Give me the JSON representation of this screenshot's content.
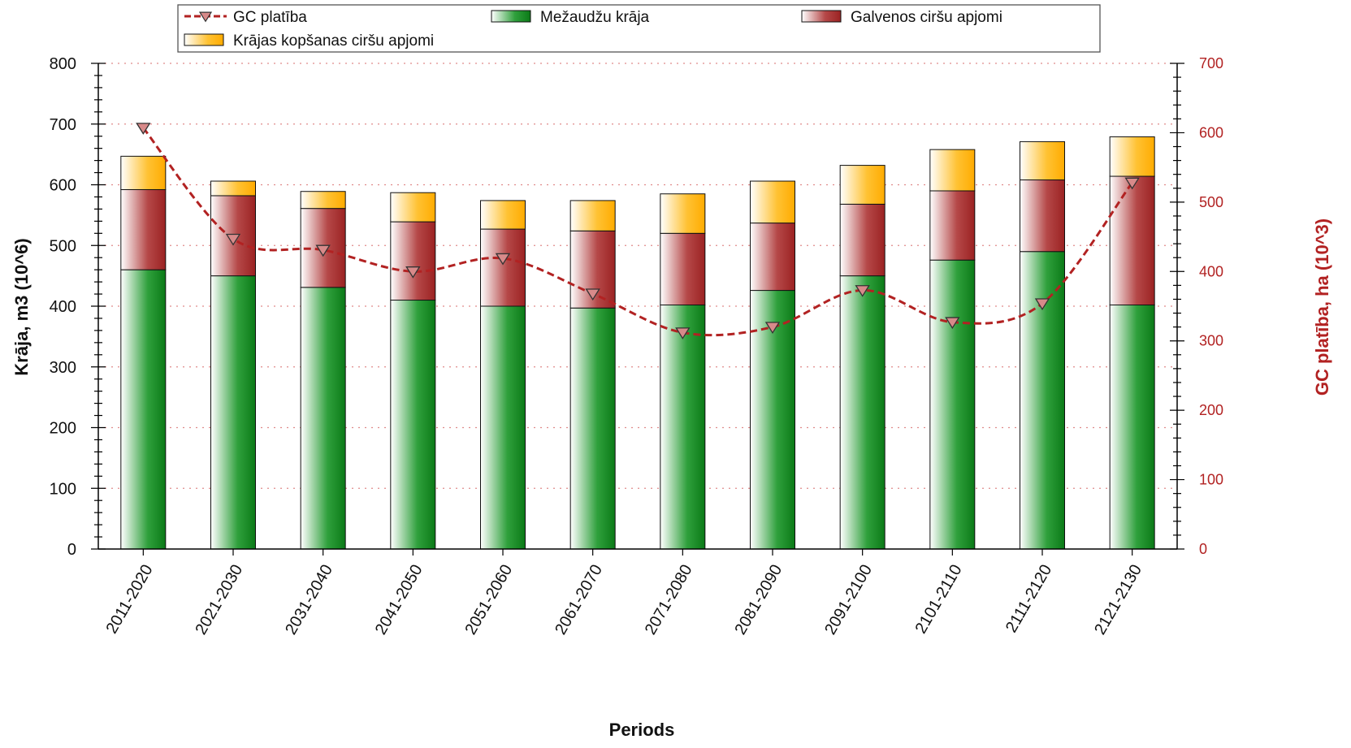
{
  "chart_data": {
    "type": "bar",
    "stacked": true,
    "categories": [
      "2011-2020",
      "2021-2030",
      "2031-2040",
      "2041-2050",
      "2051-2060",
      "2061-2070",
      "2071-2080",
      "2081-2090",
      "2091-2100",
      "2101-2110",
      "2111-2120",
      "2121-2130"
    ],
    "series": [
      {
        "name": "Mežaudžu krāja",
        "axis": "left",
        "color": "#0e8a1e",
        "values": [
          460,
          450,
          431,
          410,
          400,
          397,
          402,
          426,
          450,
          476,
          490,
          402
        ]
      },
      {
        "name": "Galvenos ciršu apjomi",
        "axis": "left",
        "color": "#a32a2a",
        "values": [
          132,
          132,
          130,
          129,
          127,
          127,
          118,
          111,
          118,
          114,
          118,
          212
        ]
      },
      {
        "name": "Krājas kopšanas ciršu apjomi",
        "axis": "left",
        "color": "#ffb300",
        "values": [
          55,
          24,
          28,
          48,
          47,
          50,
          65,
          69,
          64,
          68,
          63,
          65
        ]
      },
      {
        "name": "GC platība",
        "axis": "right",
        "type": "line",
        "color": "#b22222",
        "values": [
          607,
          447,
          431,
          400,
          419,
          368,
          312,
          320,
          373,
          327,
          354,
          528
        ]
      }
    ],
    "xlabel": "Periods",
    "ylabel": "Krāja, m3 (10^6)",
    "y2label": "GC platība, ha (10^3)",
    "ylim": [
      0,
      800
    ],
    "y2lim": [
      0,
      700
    ],
    "yticks": [
      0,
      100,
      200,
      300,
      400,
      500,
      600,
      700,
      800
    ],
    "y2ticks": [
      0,
      100,
      200,
      300,
      400,
      500,
      600,
      700
    ],
    "legend_position": "top",
    "grid": true
  }
}
